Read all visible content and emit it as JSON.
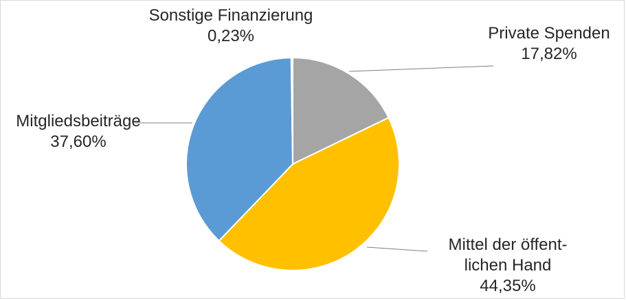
{
  "chart_data": {
    "type": "pie",
    "slices": [
      {
        "name": "Private Spenden",
        "value_label": "17,82%",
        "value": 17.82,
        "color": "#A5A5A5"
      },
      {
        "name_lines": [
          "Mittel der öffent-",
          "lichen Hand"
        ],
        "value_label": "44,35%",
        "value": 44.35,
        "color": "#FFC000"
      },
      {
        "name": "Mitgliedsbeiträge",
        "value_label": "37,60%",
        "value": 37.6,
        "color": "#5B9BD5"
      },
      {
        "name": "Sonstige Finanzierung",
        "value_label": "0,23%",
        "value": 0.23,
        "color": "#4472C4"
      }
    ],
    "legend": "none",
    "leader_line_color": "#7f7f7f"
  }
}
